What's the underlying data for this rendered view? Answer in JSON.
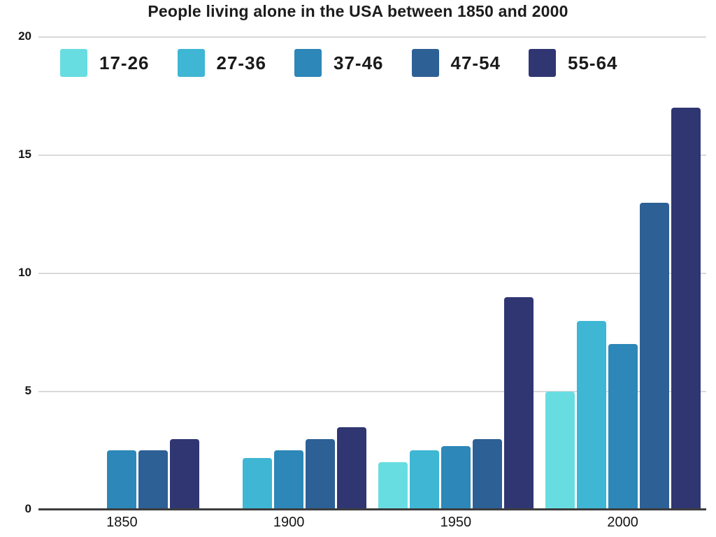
{
  "chart_data": {
    "type": "bar",
    "title": "People living alone in the USA between 1850 and 2000",
    "categories": [
      "1850",
      "1900",
      "1950",
      "2000"
    ],
    "series": [
      {
        "name": "17-26",
        "color": "#68dde1",
        "values": [
          null,
          null,
          2,
          5
        ]
      },
      {
        "name": "27-36",
        "color": "#3eb6d4",
        "values": [
          null,
          2.2,
          2.5,
          8
        ]
      },
      {
        "name": "37-46",
        "color": "#2d87b8",
        "values": [
          2.5,
          2.5,
          2.7,
          7
        ]
      },
      {
        "name": "47-54",
        "color": "#2d6095",
        "values": [
          2.5,
          3,
          3,
          13
        ]
      },
      {
        "name": "55-64",
        "color": "#303672",
        "values": [
          3,
          3.5,
          9,
          17
        ]
      }
    ],
    "y_ticks": [
      0,
      5,
      10,
      15,
      20
    ],
    "ylim": [
      0,
      20
    ],
    "xlabel": "",
    "ylabel": "",
    "grid": true,
    "legend_position": "top-left",
    "colors": {
      "gridline": "#d9d9d9",
      "axis": "#3d3d3d",
      "text": "#1c1c1c",
      "background": "#ffffff"
    }
  }
}
